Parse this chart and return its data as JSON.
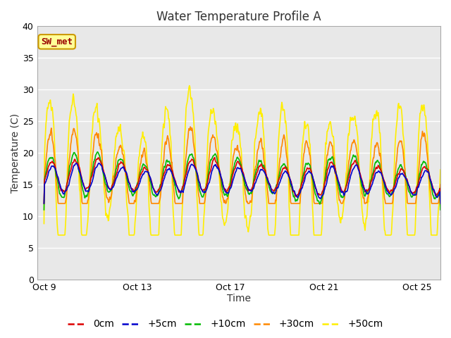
{
  "title": "Water Temperature Profile A",
  "xlabel": "Time",
  "ylabel": "Temperature (C)",
  "ylim": [
    0,
    40
  ],
  "yticks": [
    0,
    5,
    10,
    15,
    20,
    25,
    30,
    35,
    40
  ],
  "xtick_labels": [
    "Oct 9",
    "Oct 13",
    "Oct 17",
    "Oct 21",
    "Oct 25"
  ],
  "xtick_positions": [
    0,
    4,
    8,
    12,
    16
  ],
  "fig_bg_color": "#ffffff",
  "plot_bg_color": "#e8e8e8",
  "grid_color": "#ffffff",
  "annotation_text": "SW_met",
  "annotation_bg": "#ffff99",
  "annotation_border": "#cc9900",
  "annotation_text_color": "#990000",
  "series_colors": [
    "#dd0000",
    "#0000cc",
    "#00bb00",
    "#ff8800",
    "#ffee00"
  ],
  "series_labels": [
    "0cm",
    "+5cm",
    "+10cm",
    "+30cm",
    "+50cm"
  ],
  "line_width": 1.2,
  "n_days": 17,
  "points_per_day": 48,
  "title_fontsize": 12,
  "axis_label_fontsize": 10,
  "tick_fontsize": 9,
  "legend_fontsize": 10
}
